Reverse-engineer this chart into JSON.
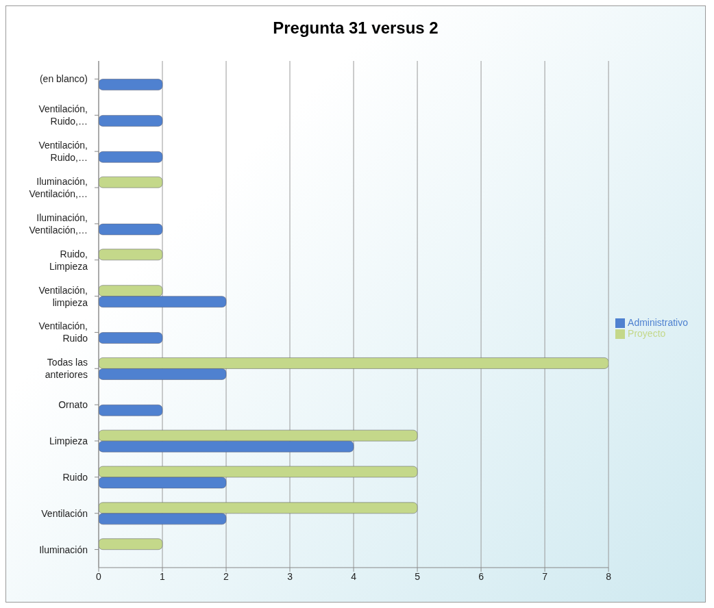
{
  "chart_data": {
    "type": "bar",
    "orientation": "horizontal",
    "title": "Pregunta 31 versus 2",
    "categories": [
      "(en blanco)",
      "Ventilación, Ruido,…",
      "Ventilación, Ruido,…",
      "Iluminación, Ventilación,…",
      "Iluminación, Ventilación,…",
      "Ruido, Limpieza",
      "Ventilación, limpieza",
      "Ventilación, Ruido",
      "Todas las anteriores",
      "Ornato",
      "Limpieza",
      "Ruido",
      "Ventilación",
      "Iluminación"
    ],
    "series": [
      {
        "name": "Proyecto",
        "color": "#c4d88a",
        "values": [
          null,
          null,
          null,
          1,
          null,
          1,
          1,
          null,
          8,
          null,
          5,
          5,
          5,
          1
        ]
      },
      {
        "name": "Administrativo",
        "color": "#4f81d0",
        "values": [
          1,
          1,
          1,
          null,
          1,
          null,
          2,
          1,
          2,
          1,
          4,
          2,
          2,
          null
        ]
      }
    ],
    "xlim": [
      0,
      8
    ],
    "xticks": [
      0,
      1,
      2,
      3,
      4,
      5,
      6,
      7,
      8
    ],
    "grid": "x",
    "legend": "right"
  }
}
